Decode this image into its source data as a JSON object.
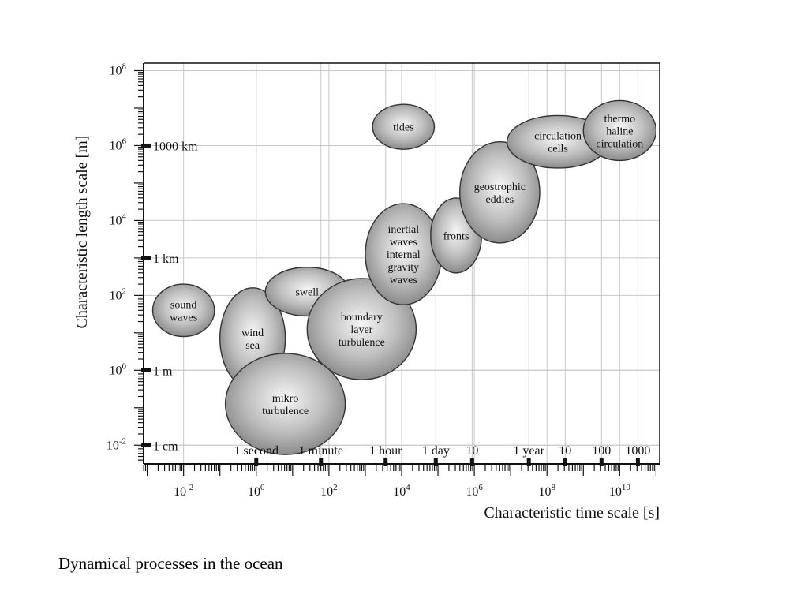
{
  "caption": "Dynamical processes in the ocean",
  "chart_data": {
    "type": "scatter",
    "xlabel": "Characteristic time scale [s]",
    "ylabel": "Characteristic length scale [m]",
    "x_scale": "log",
    "y_scale": "log",
    "xlim_log10": [
      -3.1,
      11.1
    ],
    "ylim_log10": [
      -2.5,
      8.2
    ],
    "grid": true,
    "x_ticks": [
      {
        "exp": -2,
        "base": "10",
        "sup": "-2"
      },
      {
        "exp": 0,
        "base": "10",
        "sup": "0"
      },
      {
        "exp": 2,
        "base": "10",
        "sup": "2"
      },
      {
        "exp": 4,
        "base": "10",
        "sup": "4"
      },
      {
        "exp": 6,
        "base": "10",
        "sup": "6"
      },
      {
        "exp": 8,
        "base": "10",
        "sup": "8"
      },
      {
        "exp": 10,
        "base": "10",
        "sup": "10"
      }
    ],
    "y_ticks": [
      {
        "exp": -2,
        "base": "10",
        "sup": "-2"
      },
      {
        "exp": 0,
        "base": "10",
        "sup": "0"
      },
      {
        "exp": 2,
        "base": "10",
        "sup": "2"
      },
      {
        "exp": 4,
        "base": "10",
        "sup": "4"
      },
      {
        "exp": 6,
        "base": "10",
        "sup": "6"
      },
      {
        "exp": 8,
        "base": "10",
        "sup": "8"
      }
    ],
    "y_named_ticks": [
      {
        "log10": 6,
        "label": "1000 km"
      },
      {
        "log10": 3,
        "label": "1 km"
      },
      {
        "log10": 0,
        "label": "1 m"
      },
      {
        "log10": -2,
        "label": "1 cm"
      }
    ],
    "x_named_ticks": [
      {
        "log10": 0,
        "label": "1 second"
      },
      {
        "log10": 1.78,
        "label": "1 minute"
      },
      {
        "log10": 3.56,
        "label": "1 hour"
      },
      {
        "log10": 4.94,
        "label": "1 day"
      },
      {
        "log10": 5.94,
        "label": "10"
      },
      {
        "log10": 7.5,
        "label": "1 year"
      },
      {
        "log10": 8.5,
        "label": "10"
      },
      {
        "log10": 9.5,
        "label": "100"
      },
      {
        "log10": 10.5,
        "label": "1000"
      }
    ],
    "processes": [
      {
        "lines": [
          "sound",
          "waves"
        ],
        "x_log10": -2.0,
        "y_log10": 1.6,
        "dx_log10": 0.85,
        "dy_log10": 0.7
      },
      {
        "lines": [
          "wind",
          "sea"
        ],
        "x_log10": -0.1,
        "y_log10": 0.85,
        "dx_log10": 0.9,
        "dy_log10": 1.35
      },
      {
        "lines": [
          "swell"
        ],
        "x_log10": 1.4,
        "y_log10": 2.1,
        "dx_log10": 1.15,
        "dy_log10": 0.65
      },
      {
        "lines": [
          "boundary",
          "layer",
          "turbulence"
        ],
        "x_log10": 2.9,
        "y_log10": 1.1,
        "dx_log10": 1.5,
        "dy_log10": 1.35
      },
      {
        "lines": [
          "mikro",
          "turbulence"
        ],
        "x_log10": 0.8,
        "y_log10": -0.9,
        "dx_log10": 1.65,
        "dy_log10": 1.35
      },
      {
        "lines": [
          "inertial",
          "waves",
          "internal",
          "gravity",
          "waves"
        ],
        "x_log10": 4.05,
        "y_log10": 3.1,
        "dx_log10": 1.05,
        "dy_log10": 1.35
      },
      {
        "lines": [
          "fronts"
        ],
        "x_log10": 5.5,
        "y_log10": 3.6,
        "dx_log10": 0.7,
        "dy_log10": 1.0
      },
      {
        "lines": [
          "geostrophic",
          "eddies"
        ],
        "x_log10": 6.7,
        "y_log10": 4.75,
        "dx_log10": 1.1,
        "dy_log10": 1.35
      },
      {
        "lines": [
          "tides"
        ],
        "x_log10": 4.05,
        "y_log10": 6.5,
        "dx_log10": 0.85,
        "dy_log10": 0.6
      },
      {
        "lines": [
          "circulation",
          "cells"
        ],
        "x_log10": 8.3,
        "y_log10": 6.1,
        "dx_log10": 1.4,
        "dy_log10": 0.7
      },
      {
        "lines": [
          "thermo",
          "haline",
          "circulation"
        ],
        "x_log10": 10.0,
        "y_log10": 6.4,
        "dx_log10": 1.0,
        "dy_log10": 0.8
      }
    ]
  }
}
